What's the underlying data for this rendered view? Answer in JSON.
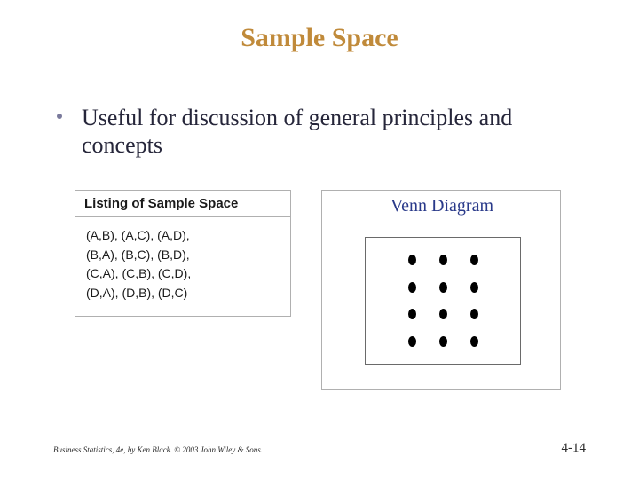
{
  "colors": {
    "title": "#c08a3a",
    "bullet_dot": "#7a7a9c",
    "bullet_text": "#26263a",
    "box_border": "#b0b0b0",
    "listing_header_bg": "#ffffff",
    "listing_header_text": "#1a1a1a",
    "listing_body_text": "#1a1a1a",
    "venn_title": "#2a3a8a",
    "venn_border": "#6a6a6a",
    "dot": "#000000",
    "footer": "#2a2a2a"
  },
  "fonts": {
    "title_size": 30,
    "bullet_size": 26,
    "listing_header_size": 15,
    "listing_body_size": 14,
    "venn_title_size": 20,
    "footer_left_size": 9,
    "footer_right_size": 15
  },
  "title": "Sample Space",
  "bullet": "Useful for discussion of general principles and concepts",
  "listing": {
    "header": "Listing of Sample Space",
    "rows": [
      "(A,B),  (A,C),  (A,D),",
      "(B,A),  (B,C),  (B,D),",
      "(C,A),  (C,B),  (C,D),",
      "(D,A),  (D,B),  (D,C)"
    ]
  },
  "venn": {
    "title": "Venn Diagram",
    "grid_rows": 4,
    "grid_cols": 3
  },
  "footer": {
    "left": "Business Statistics, 4e, by Ken Black. © 2003 John Wiley & Sons.",
    "right": "4-14"
  }
}
